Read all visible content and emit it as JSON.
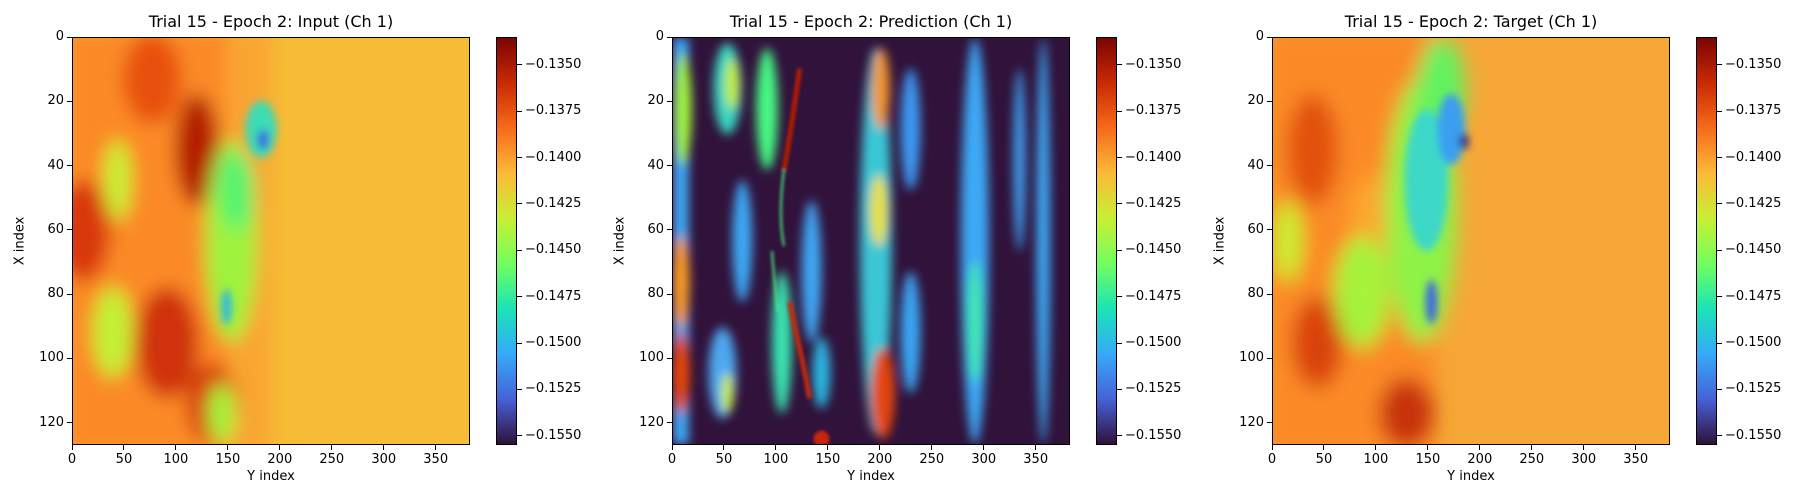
{
  "chart_data": [
    {
      "type": "heatmap",
      "title": "Trial 15 - Epoch 2: Input (Ch 1)",
      "xlabel": "Y index",
      "ylabel": "X index",
      "xlim": [
        0,
        383
      ],
      "ylim": [
        127,
        0
      ],
      "xticks": [
        0,
        50,
        100,
        150,
        200,
        250,
        300,
        350
      ],
      "yticks": [
        0,
        20,
        40,
        60,
        80,
        100,
        120
      ],
      "colorbar": {
        "colormap": "turbo",
        "range": [
          -0.1555,
          -0.1335
        ],
        "ticks": [
          -0.135,
          -0.1375,
          -0.14,
          -0.1425,
          -0.145,
          -0.1475,
          -0.15,
          -0.1525,
          -0.155
        ],
        "tick_labels": [
          "−0.1350",
          "−0.1375",
          "−0.1400",
          "−0.1425",
          "−0.1450",
          "−0.1475",
          "−0.1500",
          "−0.1525",
          "−0.1550"
        ]
      }
    },
    {
      "type": "heatmap",
      "title": "Trial 15 - Epoch 2: Prediction (Ch 1)",
      "xlabel": "Y index",
      "ylabel": "X index",
      "xlim": [
        0,
        383
      ],
      "ylim": [
        127,
        0
      ],
      "xticks": [
        0,
        50,
        100,
        150,
        200,
        250,
        300,
        350
      ],
      "yticks": [
        0,
        20,
        40,
        60,
        80,
        100,
        120
      ],
      "colorbar": {
        "colormap": "turbo",
        "range": [
          -0.1555,
          -0.1335
        ],
        "ticks": [
          -0.135,
          -0.1375,
          -0.14,
          -0.1425,
          -0.145,
          -0.1475,
          -0.15,
          -0.1525,
          -0.155
        ],
        "tick_labels": [
          "−0.1350",
          "−0.1375",
          "−0.1400",
          "−0.1425",
          "−0.1450",
          "−0.1475",
          "−0.1500",
          "−0.1525",
          "−0.1550"
        ]
      }
    },
    {
      "type": "heatmap",
      "title": "Trial 15 - Epoch 2: Target (Ch 1)",
      "xlabel": "Y index",
      "ylabel": "X index",
      "xlim": [
        0,
        383
      ],
      "ylim": [
        127,
        0
      ],
      "xticks": [
        0,
        50,
        100,
        150,
        200,
        250,
        300,
        350
      ],
      "yticks": [
        0,
        20,
        40,
        60,
        80,
        100,
        120
      ],
      "colorbar": {
        "colormap": "turbo",
        "range": [
          -0.1555,
          -0.1335
        ],
        "ticks": [
          -0.135,
          -0.1375,
          -0.14,
          -0.1425,
          -0.145,
          -0.1475,
          -0.15,
          -0.1525,
          -0.155
        ],
        "tick_labels": [
          "−0.1350",
          "−0.1375",
          "−0.1400",
          "−0.1425",
          "−0.1450",
          "−0.1475",
          "−0.1500",
          "−0.1525",
          "−0.1550"
        ]
      }
    }
  ]
}
